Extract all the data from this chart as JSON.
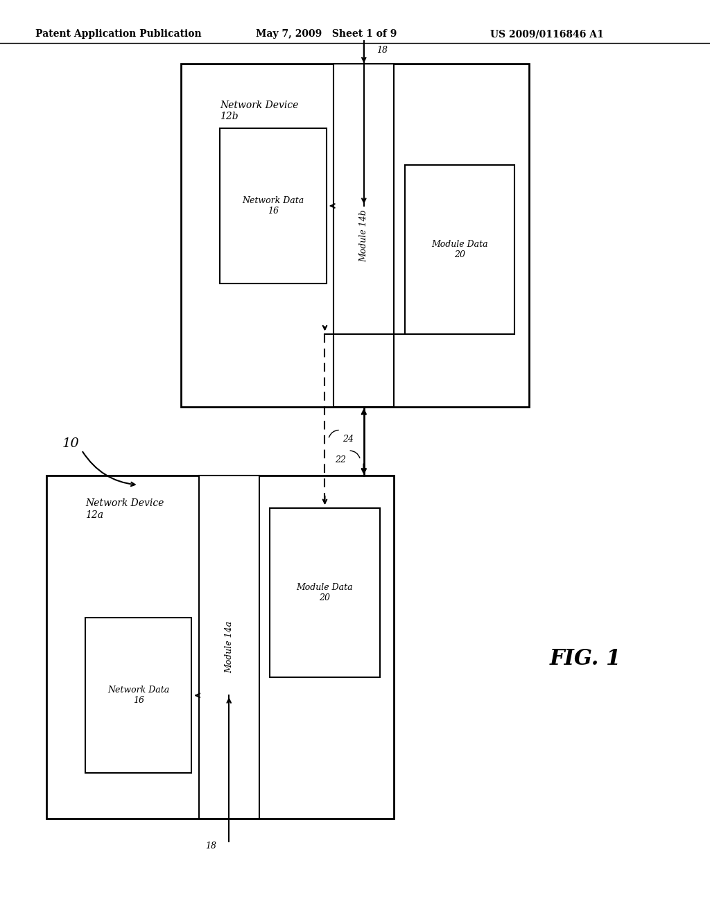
{
  "title_left": "Patent Application Publication",
  "title_center": "May 7, 2009   Sheet 1 of 9",
  "title_right": "US 2009/0116846 A1",
  "fig_label": "FIG. 1",
  "system_label": "10",
  "bg_color": "#ffffff",
  "box_color": "#000000",
  "text_color": "#000000"
}
